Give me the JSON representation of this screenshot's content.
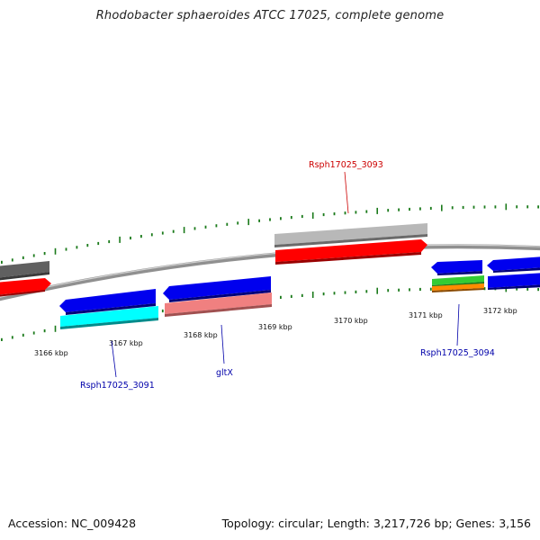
{
  "title": "Rhodobacter sphaeroides ATCC 17025, complete genome",
  "accession": "Accession: NC_009428",
  "stats": "Topology: circular; Length: 3,217,726 bp; Genes: 3,156",
  "colors": {
    "backbone": "#808080",
    "tick": "#1a7a1a",
    "gene_label_red": "#cc0000",
    "gene_label_blue": "#0000aa"
  },
  "kbp_labels": [
    "3166 kbp",
    "3167 kbp",
    "3168 kbp",
    "3169 kbp",
    "3170 kbp",
    "3171 kbp",
    "3172 kbp"
  ],
  "gene_labels": {
    "top": "Rsph17025_3093",
    "bottom_left": "Rsph17025_3091",
    "bottom_mid": "gltX",
    "bottom_right": "Rsph17025_3094"
  },
  "features": [
    {
      "name": "gray-feature-left",
      "color": "#606060"
    },
    {
      "name": "red-arrow-left",
      "color": "#ff0000"
    },
    {
      "name": "blue-arrow-3091",
      "color": "#0000ee"
    },
    {
      "name": "cyan-feature-3091",
      "color": "#00ffff"
    },
    {
      "name": "blue-arrow-gltx",
      "color": "#0000ee"
    },
    {
      "name": "pink-feature-gltx",
      "color": "#f08080"
    },
    {
      "name": "gray-feature-3093",
      "color": "#b8b8b8"
    },
    {
      "name": "red-arrow-3093",
      "color": "#ff0000"
    },
    {
      "name": "blue-arrow-3094",
      "color": "#0000ee"
    },
    {
      "name": "green-feature-3094",
      "color": "#33cc33"
    },
    {
      "name": "orange-feature-3094",
      "color": "#ff8c00"
    },
    {
      "name": "blue-arrow-right-top",
      "color": "#0000ee"
    },
    {
      "name": "blue-feature-right-bottom",
      "color": "#0000ee"
    }
  ]
}
